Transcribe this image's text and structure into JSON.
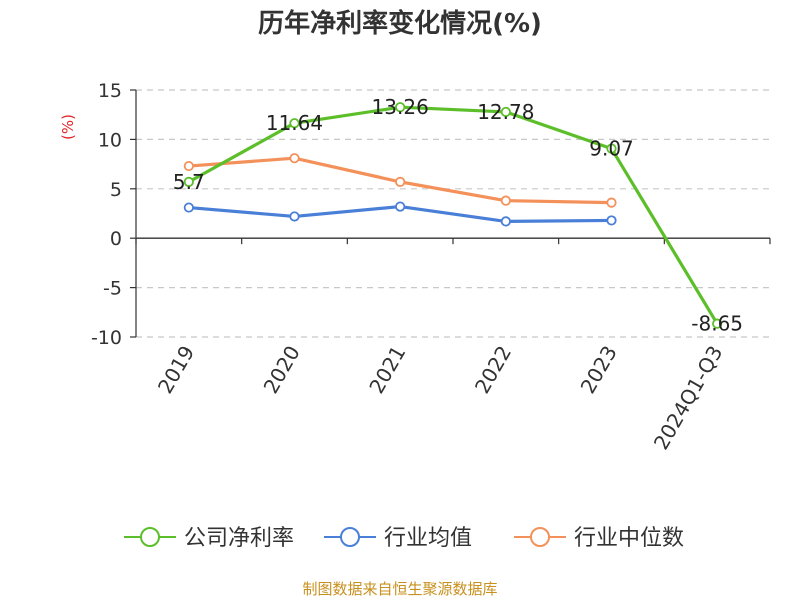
{
  "chart_data": {
    "type": "line",
    "title": "历年净利率变化情况(%)",
    "unit_label": "(%)",
    "categories": [
      "2019",
      "2020",
      "2021",
      "2022",
      "2023",
      "2024Q1-Q3"
    ],
    "ylim": [
      -10,
      15
    ],
    "yticks": [
      15,
      10,
      5,
      0,
      -5,
      -10
    ],
    "grid": true,
    "legend_position": "bottom",
    "series": [
      {
        "name": "公司净利率",
        "color": "#5cbf2a",
        "values": [
          5.7,
          11.64,
          13.26,
          12.78,
          9.07,
          -8.65
        ],
        "labels": [
          "5.7",
          "11.64",
          "13.26",
          "12.78",
          "9.07",
          "-8.65"
        ]
      },
      {
        "name": "行业均值",
        "color": "#4a7fd8",
        "values": [
          3.1,
          2.2,
          3.2,
          1.7,
          1.8,
          null
        ]
      },
      {
        "name": "行业中位数",
        "color": "#f4915a",
        "values": [
          7.3,
          8.1,
          5.7,
          3.8,
          3.6,
          null
        ]
      }
    ]
  },
  "source": "制图数据来自恒生聚源数据库"
}
